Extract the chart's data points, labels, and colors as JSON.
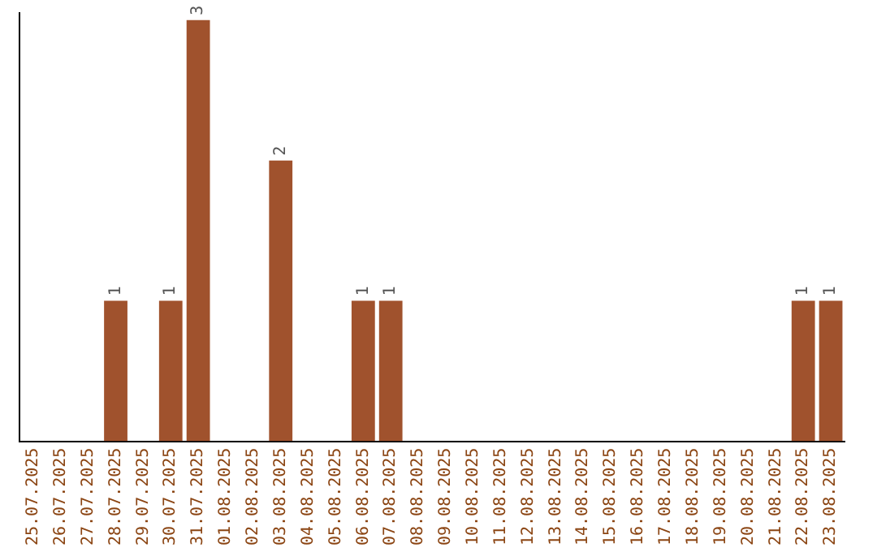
{
  "chart_data": {
    "type": "bar",
    "categories": [
      "25.07.2025",
      "26.07.2025",
      "27.07.2025",
      "28.07.2025",
      "29.07.2025",
      "30.07.2025",
      "31.07.2025",
      "01.08.2025",
      "02.08.2025",
      "03.08.2025",
      "04.08.2025",
      "05.08.2025",
      "06.08.2025",
      "07.08.2025",
      "08.08.2025",
      "09.08.2025",
      "10.08.2025",
      "11.08.2025",
      "12.08.2025",
      "13.08.2025",
      "14.08.2025",
      "15.08.2025",
      "16.08.2025",
      "17.08.2025",
      "18.08.2025",
      "19.08.2025",
      "20.08.2025",
      "21.08.2025",
      "22.08.2025",
      "23.08.2025"
    ],
    "values": [
      0,
      0,
      0,
      1,
      0,
      1,
      3,
      0,
      0,
      2,
      0,
      0,
      1,
      1,
      0,
      0,
      0,
      0,
      0,
      0,
      0,
      0,
      0,
      0,
      0,
      0,
      0,
      0,
      1,
      1
    ],
    "value_labels": [
      null,
      null,
      null,
      "1",
      null,
      "1",
      "3",
      null,
      null,
      "2",
      null,
      null,
      "1",
      "1",
      null,
      null,
      null,
      null,
      null,
      null,
      null,
      null,
      null,
      null,
      null,
      null,
      null,
      null,
      "1",
      "1"
    ],
    "color": "#a0522d",
    "ylim": [
      0,
      3.05
    ],
    "grid": false,
    "legend": false
  }
}
